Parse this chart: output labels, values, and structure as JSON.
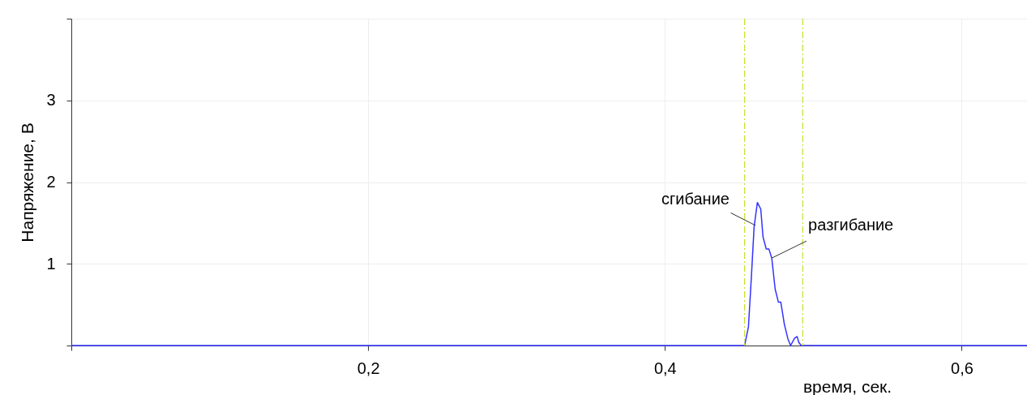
{
  "chart_data": {
    "type": "line",
    "xlabel": "время, сек.",
    "ylabel": "Напряжение, В",
    "xlim": [
      0,
      0.644
    ],
    "ylim": [
      0,
      4
    ],
    "xticks": [
      {
        "value": 0,
        "label": null
      },
      {
        "value": 0.2,
        "label": "0,2"
      },
      {
        "value": 0.4,
        "label": "0,4"
      },
      {
        "value": 0.6,
        "label": "0,6"
      }
    ],
    "yticks": [
      {
        "value": 0,
        "label": null
      },
      1,
      2,
      3,
      {
        "value": 4,
        "label": null
      }
    ],
    "grid": true,
    "marker": "none",
    "line_style": "solid",
    "series": [
      {
        "color": "#3333ff",
        "x": [
          0,
          0.4537,
          0.4563,
          0.4583,
          0.4601,
          0.4623,
          0.4646,
          0.4661,
          0.4683,
          0.4701,
          0.472,
          0.4743,
          0.4765,
          0.4781,
          0.4805,
          0.4829,
          0.4847,
          0.4874,
          0.4891,
          0.4902,
          0.4918,
          0.644
        ],
        "values": [
          0,
          0,
          0.23,
          0.85,
          1.45,
          1.75,
          1.67,
          1.33,
          1.18,
          1.18,
          1.07,
          0.69,
          0.53,
          0.53,
          0.26,
          0.08,
          0,
          0.09,
          0.11,
          0.04,
          0,
          0
        ]
      }
    ],
    "ref_lines": [
      {
        "axis": "x",
        "value": 0.4537,
        "color": "#c8e030",
        "line_style": "dashdot"
      },
      {
        "axis": "x",
        "value": 0.4929,
        "color": "#c8e030",
        "line_style": "dashdot"
      }
    ],
    "annotations": [
      {
        "text": "сгибание",
        "x": 0.461,
        "y": 1.47
      },
      {
        "text": "разгибание",
        "x": 0.472,
        "y": 1.07
      }
    ]
  }
}
